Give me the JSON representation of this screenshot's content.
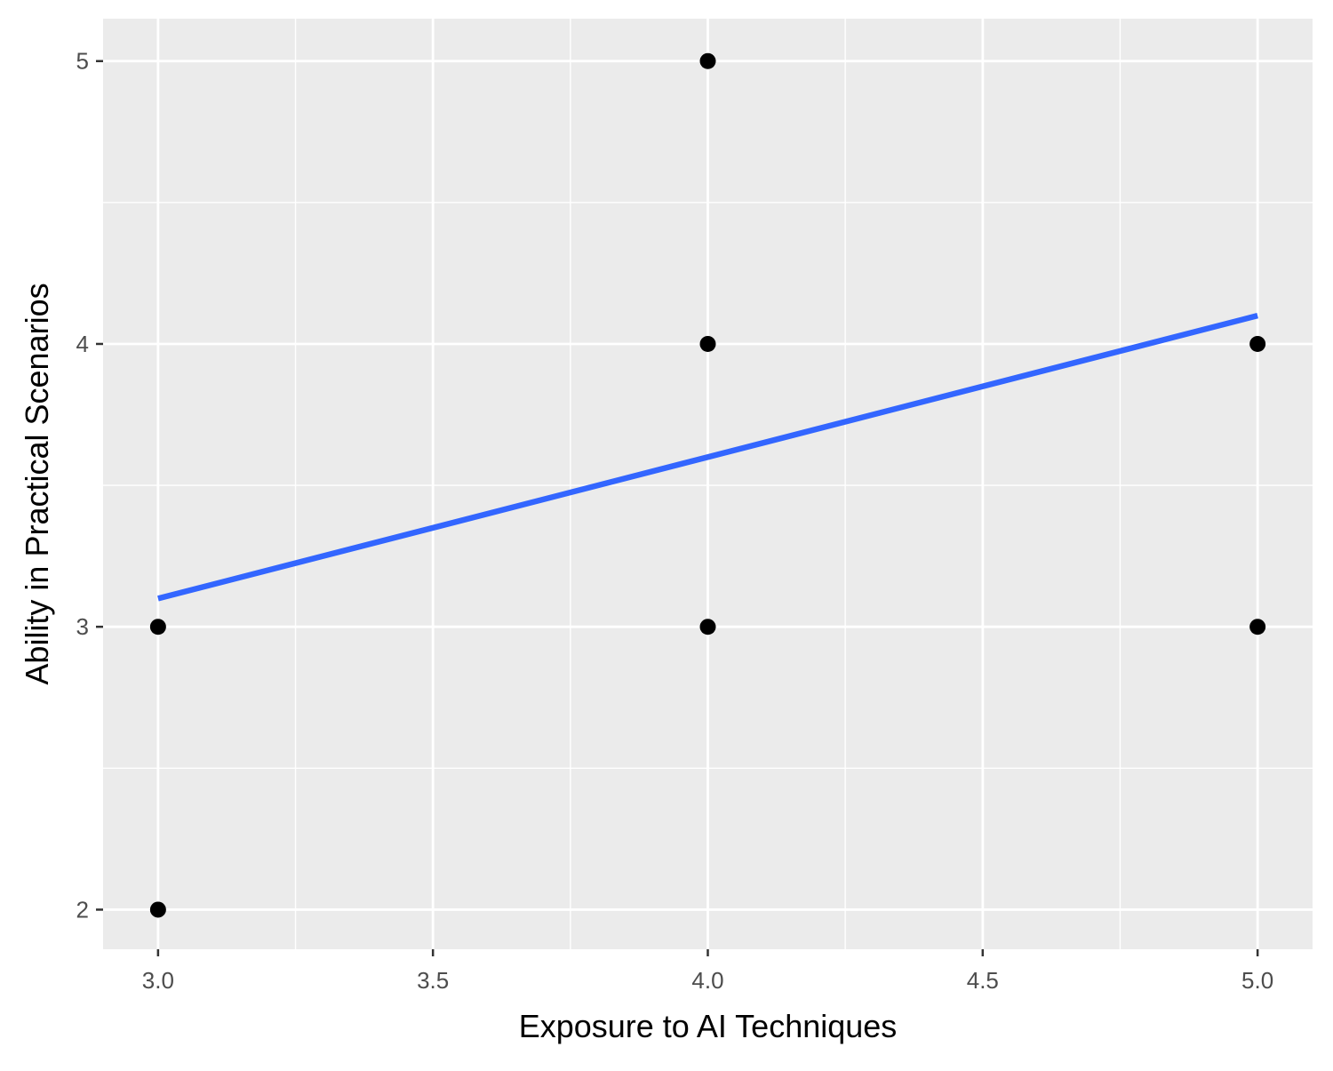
{
  "chart_data": {
    "type": "scatter",
    "title": "",
    "xlabel": "Exposure to AI Techniques",
    "ylabel": "Ability in Practical Scenarios",
    "xlim": [
      2.9,
      5.1
    ],
    "ylim": [
      1.86,
      5.15
    ],
    "x_ticks": [
      3.0,
      3.5,
      4.0,
      4.5,
      5.0
    ],
    "x_tick_labels": [
      "3.0",
      "3.5",
      "4.0",
      "4.5",
      "5.0"
    ],
    "y_ticks": [
      2,
      3,
      4,
      5
    ],
    "y_tick_labels": [
      "2",
      "3",
      "4",
      "5"
    ],
    "grid": true,
    "legend": "none",
    "colors": {
      "panel_background": "#ebebeb",
      "grid": "#ffffff",
      "points": "#000000",
      "trend_line": "#3366ff",
      "tick_marks": "#333333"
    },
    "points": [
      {
        "x": 3,
        "y": 2
      },
      {
        "x": 3,
        "y": 3
      },
      {
        "x": 4,
        "y": 3
      },
      {
        "x": 4,
        "y": 4
      },
      {
        "x": 4,
        "y": 5
      },
      {
        "x": 5,
        "y": 3
      },
      {
        "x": 5,
        "y": 4
      }
    ],
    "trend_line": {
      "method": "linear",
      "x": [
        3,
        5
      ],
      "y": [
        3.1,
        4.1
      ]
    }
  }
}
